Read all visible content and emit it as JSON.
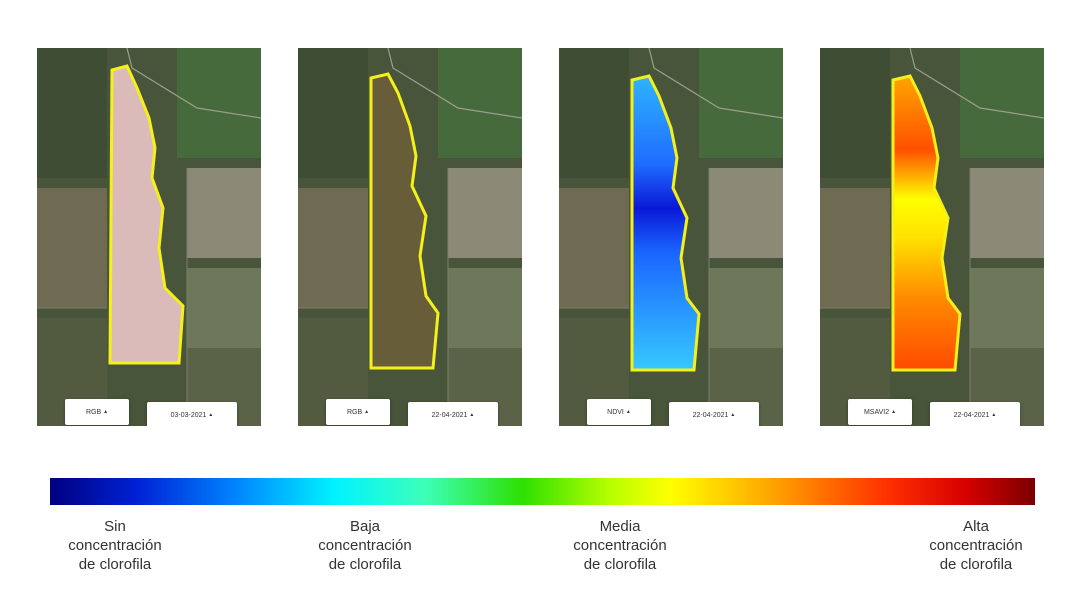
{
  "panels": [
    {
      "layer": "RGB",
      "date": "03-03-2021",
      "overlay": "rgb-pink"
    },
    {
      "layer": "RGB",
      "date": "22-04-2021",
      "overlay": "rgb-natural"
    },
    {
      "layer": "NDVI",
      "date": "22-04-2021",
      "overlay": "ndvi"
    },
    {
      "layer": "MSAVI2",
      "date": "22-04-2021",
      "overlay": "msavi2"
    }
  ],
  "caret_icon": "▲",
  "field_outline_color": "#f4f01a",
  "legend": {
    "colors": [
      "#00007f",
      "#0086ff",
      "#00f3ff",
      "#2ee000",
      "#ffff00",
      "#ff3000",
      "#7b0000"
    ],
    "labels": [
      [
        "Sin",
        "concentración",
        "de clorofila"
      ],
      [
        "Baja",
        "concentración",
        "de clorofila"
      ],
      [
        "Media",
        "concentración",
        "de clorofila"
      ],
      [
        "Alta",
        "concentración",
        "de clorofila"
      ]
    ]
  }
}
